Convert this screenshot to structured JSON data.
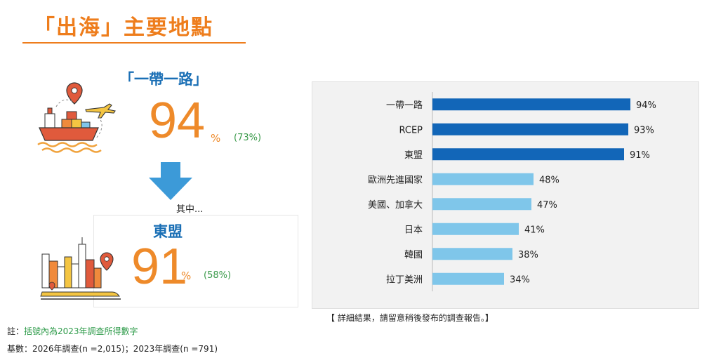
{
  "header": {
    "title": "「出海」主要地點"
  },
  "highlight1": {
    "label": "「一帶一路」",
    "value": "94",
    "unit": "%",
    "previous": "(73%)"
  },
  "arrow_caption": "其中...",
  "highlight2": {
    "label": "東盟",
    "value": "91",
    "unit": "%",
    "previous": "(58%)"
  },
  "colors": {
    "accent_orange": "#ee7d1c",
    "dark_blue": "#1266b8",
    "light_blue": "#7fc6ea",
    "previous_green": "#3a9a4a"
  },
  "chart_data": {
    "type": "bar",
    "orientation": "horizontal",
    "categories": [
      "一帶一路",
      "RCEP",
      "東盟",
      "歐洲先進國家",
      "美國、加拿大",
      "日本",
      "韓國",
      "拉丁美洲"
    ],
    "values": [
      94,
      93,
      91,
      48,
      47,
      41,
      38,
      34
    ],
    "value_labels": [
      "94%",
      "93%",
      "91%",
      "48%",
      "47%",
      "41%",
      "38%",
      "34%"
    ],
    "bar_colors": [
      "#1266b8",
      "#1266b8",
      "#1266b8",
      "#7fc6ea",
      "#7fc6ea",
      "#7fc6ea",
      "#7fc6ea",
      "#7fc6ea"
    ],
    "xlim": [
      0,
      100
    ],
    "grid": false
  },
  "notes": {
    "detail": "【 詳細結果，請留意稍後發布的調查報告。】",
    "note_prefix": "註：",
    "note_text": "括號內為2023年調查所得數字",
    "base": "基數：2026年調查(n =2,015)；2023年調查(n =791)"
  }
}
